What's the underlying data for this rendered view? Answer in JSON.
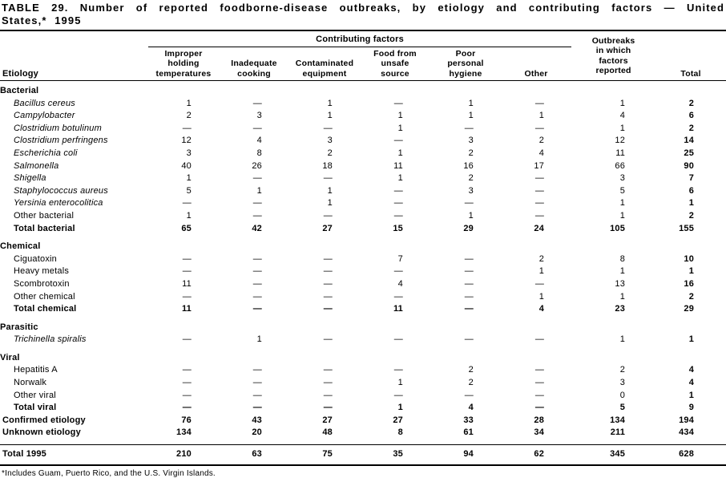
{
  "colors": {
    "text": "#000000",
    "background": "#ffffff",
    "rule": "#000000"
  },
  "table": {
    "title": "TABLE 29. Number of reported foodborne-disease outbreaks, by etiology and contributing factors — United States,* 1995",
    "header": {
      "etiology": "Etiology",
      "contributing_factors": "Contributing factors",
      "factor_columns": [
        "Improper\nholding\ntemperatures",
        "Inadequate\ncooking",
        "Contaminated\nequipment",
        "Food from\nunsafe\nsource",
        "Poor\npersonal\nhygiene",
        "Other"
      ],
      "outbreaks_reported": "Outbreaks\nin which\nfactors\nreported",
      "total": "Total"
    },
    "sections": [
      {
        "name": "Bacterial",
        "rows": [
          {
            "label": "Bacillus cereus",
            "italic": true,
            "values": [
              "1",
              "—",
              "1",
              "—",
              "1",
              "—",
              "1",
              "2"
            ]
          },
          {
            "label": "Campylobacter",
            "italic": true,
            "values": [
              "2",
              "3",
              "1",
              "1",
              "1",
              "1",
              "4",
              "6"
            ]
          },
          {
            "label": "Clostridium botulinum",
            "italic": true,
            "values": [
              "—",
              "—",
              "—",
              "1",
              "—",
              "—",
              "1",
              "2"
            ]
          },
          {
            "label": "Clostridium perfringens",
            "italic": true,
            "values": [
              "12",
              "4",
              "3",
              "—",
              "3",
              "2",
              "12",
              "14"
            ]
          },
          {
            "label": "Escherichia coli",
            "italic": true,
            "values": [
              "3",
              "8",
              "2",
              "1",
              "2",
              "4",
              "11",
              "25"
            ]
          },
          {
            "label": "Salmonella",
            "italic": true,
            "values": [
              "40",
              "26",
              "18",
              "11",
              "16",
              "17",
              "66",
              "90"
            ]
          },
          {
            "label": "Shigella",
            "italic": true,
            "values": [
              "1",
              "—",
              "—",
              "1",
              "2",
              "—",
              "3",
              "7"
            ]
          },
          {
            "label": "Staphylococcus aureus",
            "italic": true,
            "values": [
              "5",
              "1",
              "1",
              "—",
              "3",
              "—",
              "5",
              "6"
            ]
          },
          {
            "label": "Yersinia enterocolitica",
            "italic": true,
            "values": [
              "—",
              "—",
              "1",
              "—",
              "—",
              "—",
              "1",
              "1"
            ]
          },
          {
            "label": "Other bacterial",
            "italic": false,
            "values": [
              "1",
              "—",
              "—",
              "—",
              "1",
              "—",
              "1",
              "2"
            ]
          }
        ],
        "total": {
          "label": "Total bacterial",
          "values": [
            "65",
            "42",
            "27",
            "15",
            "29",
            "24",
            "105",
            "155"
          ]
        }
      },
      {
        "name": "Chemical",
        "rows": [
          {
            "label": "Ciguatoxin",
            "italic": false,
            "values": [
              "—",
              "—",
              "—",
              "7",
              "—",
              "2",
              "8",
              "10"
            ]
          },
          {
            "label": "Heavy metals",
            "italic": false,
            "values": [
              "—",
              "—",
              "—",
              "—",
              "—",
              "1",
              "1",
              "1"
            ]
          },
          {
            "label": "Scombrotoxin",
            "italic": false,
            "values": [
              "11",
              "—",
              "—",
              "4",
              "—",
              "—",
              "13",
              "16"
            ]
          },
          {
            "label": "Other chemical",
            "italic": false,
            "values": [
              "—",
              "—",
              "—",
              "—",
              "—",
              "1",
              "1",
              "2"
            ]
          }
        ],
        "total": {
          "label": "Total chemical",
          "values": [
            "11",
            "—",
            "—",
            "11",
            "—",
            "4",
            "23",
            "29"
          ]
        }
      },
      {
        "name": "Parasitic",
        "rows": [
          {
            "label": "Trichinella spiralis",
            "italic": true,
            "values": [
              "—",
              "1",
              "—",
              "—",
              "—",
              "—",
              "1",
              "1"
            ]
          }
        ],
        "total": null
      },
      {
        "name": "Viral",
        "rows": [
          {
            "label": "Hepatitis A",
            "italic": false,
            "values": [
              "—",
              "—",
              "—",
              "—",
              "2",
              "—",
              "2",
              "4"
            ]
          },
          {
            "label": "Norwalk",
            "italic": false,
            "values": [
              "—",
              "—",
              "—",
              "1",
              "2",
              "—",
              "3",
              "4"
            ]
          },
          {
            "label": "Other viral",
            "italic": false,
            "values": [
              "—",
              "—",
              "—",
              "—",
              "—",
              "—",
              "0",
              "1"
            ]
          }
        ],
        "total": {
          "label": "Total viral",
          "values": [
            "—",
            "—",
            "—",
            "1",
            "4",
            "—",
            "5",
            "9"
          ]
        }
      }
    ],
    "summary_rows": [
      {
        "label": "Confirmed etiology",
        "values": [
          "76",
          "43",
          "27",
          "27",
          "33",
          "28",
          "134",
          "194"
        ]
      },
      {
        "label": "Unknown etiology",
        "values": [
          "134",
          "20",
          "48",
          "8",
          "61",
          "34",
          "211",
          "434"
        ]
      }
    ],
    "grand_total": {
      "label": "Total 1995",
      "values": [
        "210",
        "63",
        "75",
        "35",
        "94",
        "62",
        "345",
        "628"
      ]
    },
    "footnote": "*Includes Guam, Puerto Rico, and the U.S. Virgin Islands."
  }
}
